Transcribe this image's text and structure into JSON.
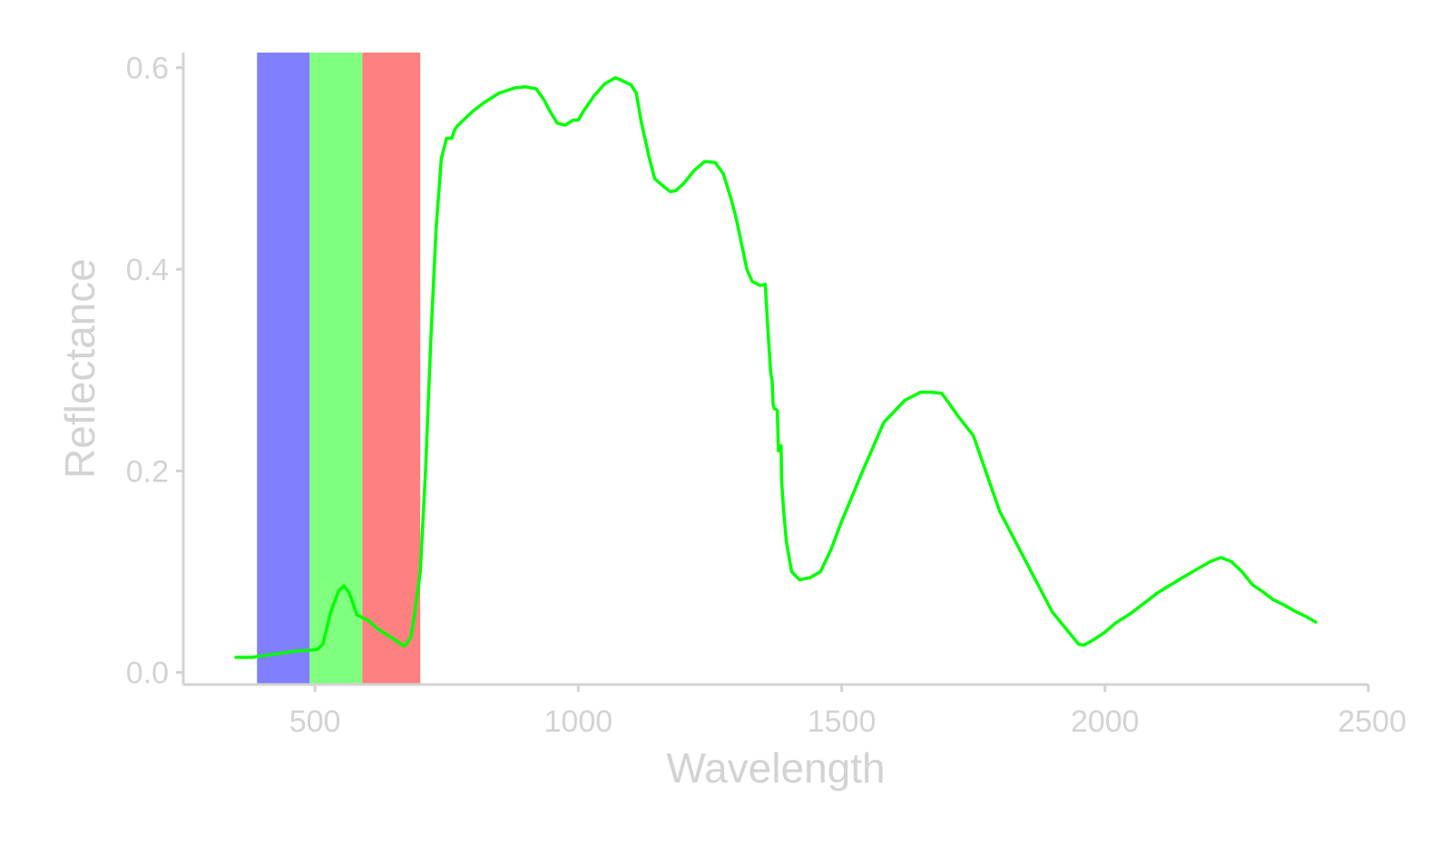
{
  "chart_data": {
    "type": "line",
    "title": "",
    "xlabel": "Wavelength",
    "ylabel": "Reflectance",
    "xlim": [
      250,
      2500
    ],
    "ylim": [
      -0.012,
      0.615
    ],
    "x_ticks": [
      500,
      1000,
      1500,
      2000,
      2500
    ],
    "x_tick_labels": [
      "500",
      "1000",
      "1500",
      "2000",
      "2500"
    ],
    "y_ticks": [
      0.0,
      0.2,
      0.4,
      0.6
    ],
    "y_tick_labels": [
      "0.0",
      "0.2",
      "0.4",
      "0.6"
    ],
    "grid": false,
    "legend": "none",
    "bands": [
      {
        "name": "blue",
        "x0": 390,
        "x1": 490,
        "color": "#8080ff"
      },
      {
        "name": "green",
        "x0": 490,
        "x1": 590,
        "color": "#80ff80"
      },
      {
        "name": "red",
        "x0": 590,
        "x1": 700,
        "color": "#ff8080"
      }
    ],
    "series": [
      {
        "color": "#00ff00",
        "x": [
          350,
          380,
          420,
          460,
          490,
          505,
          515,
          530,
          545,
          555,
          565,
          580,
          600,
          620,
          650,
          670,
          682,
          690,
          700,
          710,
          720,
          730,
          740,
          750,
          760,
          765,
          770,
          780,
          800,
          820,
          850,
          880,
          900,
          920,
          935,
          945,
          960,
          975,
          990,
          1000,
          1010,
          1030,
          1050,
          1070,
          1080,
          1100,
          1110,
          1120,
          1135,
          1145,
          1160,
          1175,
          1185,
          1200,
          1220,
          1240,
          1260,
          1275,
          1290,
          1300,
          1310,
          1320,
          1330,
          1345,
          1355,
          1360,
          1365,
          1366,
          1368,
          1370,
          1372,
          1378,
          1380,
          1385,
          1386,
          1390,
          1395,
          1400,
          1405,
          1420,
          1440,
          1460,
          1480,
          1500,
          1540,
          1580,
          1620,
          1650,
          1670,
          1690,
          1700,
          1720,
          1750,
          1770,
          1800,
          1850,
          1900,
          1950,
          1960,
          1980,
          2000,
          2020,
          2050,
          2100,
          2150,
          2180,
          2200,
          2220,
          2240,
          2260,
          2280,
          2300,
          2320,
          2340,
          2360,
          2380,
          2400
        ],
        "y": [
          0.015,
          0.015,
          0.018,
          0.021,
          0.022,
          0.023,
          0.028,
          0.06,
          0.081,
          0.086,
          0.079,
          0.057,
          0.052,
          0.043,
          0.033,
          0.026,
          0.035,
          0.06,
          0.1,
          0.2,
          0.33,
          0.44,
          0.51,
          0.53,
          0.53,
          0.538,
          0.542,
          0.547,
          0.557,
          0.565,
          0.575,
          0.58,
          0.581,
          0.579,
          0.568,
          0.558,
          0.545,
          0.543,
          0.548,
          0.548,
          0.557,
          0.572,
          0.584,
          0.59,
          0.588,
          0.583,
          0.575,
          0.545,
          0.51,
          0.49,
          0.483,
          0.477,
          0.478,
          0.485,
          0.498,
          0.507,
          0.506,
          0.495,
          0.47,
          0.45,
          0.425,
          0.4,
          0.388,
          0.384,
          0.385,
          0.34,
          0.3,
          0.295,
          0.29,
          0.265,
          0.262,
          0.26,
          0.22,
          0.225,
          0.19,
          0.16,
          0.13,
          0.115,
          0.1,
          0.092,
          0.094,
          0.1,
          0.122,
          0.15,
          0.2,
          0.248,
          0.27,
          0.278,
          0.278,
          0.277,
          0.27,
          0.255,
          0.235,
          0.205,
          0.16,
          0.11,
          0.06,
          0.028,
          0.027,
          0.033,
          0.04,
          0.049,
          0.059,
          0.079,
          0.095,
          0.104,
          0.11,
          0.114,
          0.11,
          0.1,
          0.087,
          0.08,
          0.072,
          0.067,
          0.061,
          0.056,
          0.05
        ]
      }
    ]
  }
}
